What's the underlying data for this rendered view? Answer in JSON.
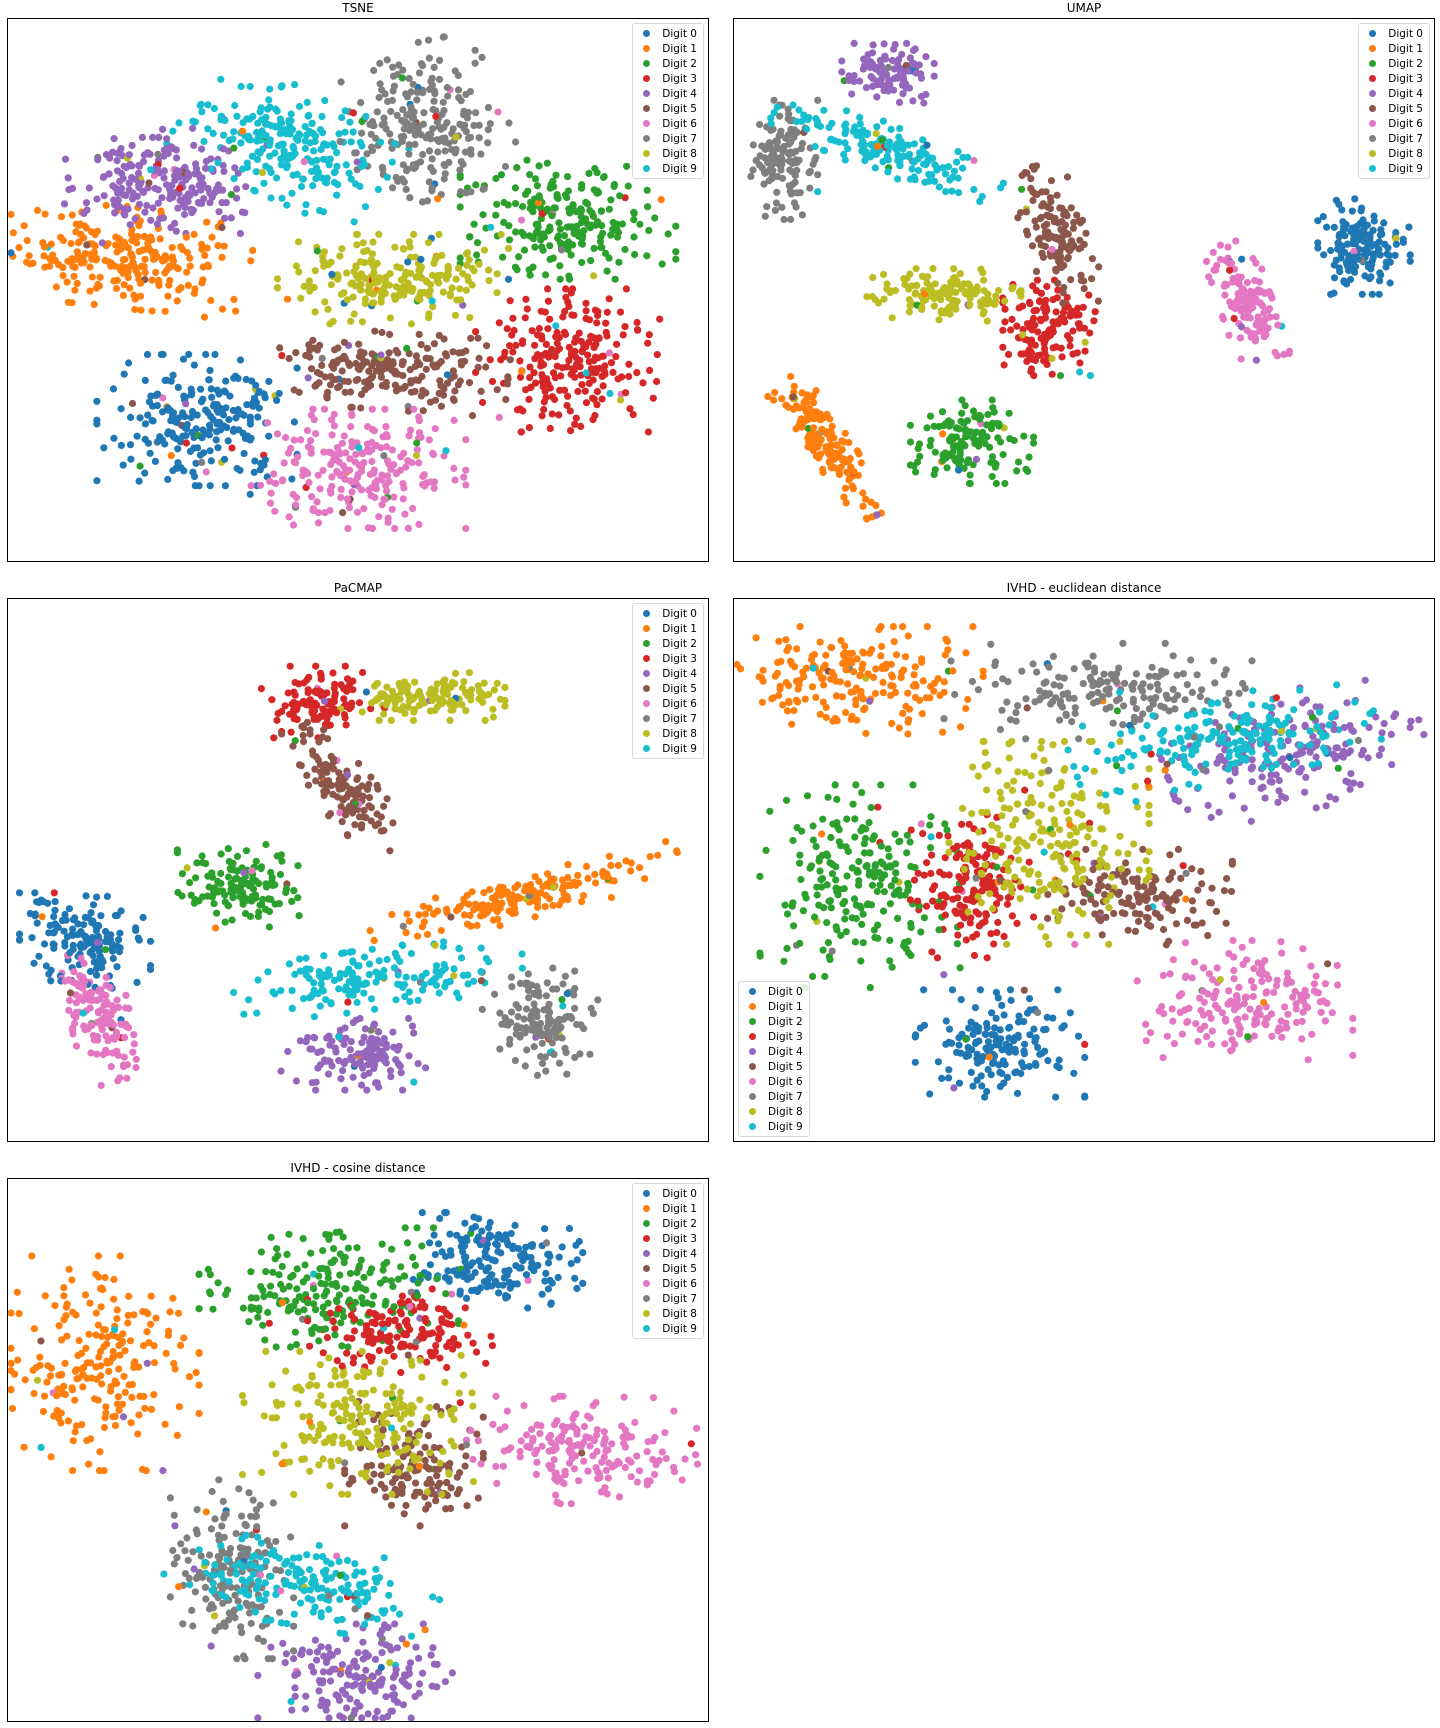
{
  "colors": {
    "Digit 0": "#1f77b4",
    "Digit 1": "#ff7f0e",
    "Digit 2": "#2ca02c",
    "Digit 3": "#d62728",
    "Digit 4": "#9467bd",
    "Digit 5": "#8c564b",
    "Digit 6": "#e377c2",
    "Digit 7": "#7f7f7f",
    "Digit 8": "#bcbd22",
    "Digit 9": "#17becf"
  },
  "chart_data": [
    {
      "type": "scatter",
      "title": "TSNE",
      "xlabel": "",
      "ylabel": "",
      "axes_ticks": "none",
      "legend_position": "upper-right",
      "legend": [
        "Digit 0",
        "Digit 1",
        "Digit 2",
        "Digit 3",
        "Digit 4",
        "Digit 5",
        "Digit 6",
        "Digit 7",
        "Digit 8",
        "Digit 9"
      ],
      "clusters": [
        {
          "label": "Digit 0",
          "cx": 0.27,
          "cy": 0.26,
          "rx": 0.13,
          "ry": 0.11,
          "angle": 0,
          "count": 230
        },
        {
          "label": "Digit 1",
          "cx": 0.17,
          "cy": 0.56,
          "rx": 0.16,
          "ry": 0.085,
          "angle": -8,
          "count": 240
        },
        {
          "label": "Digit 2",
          "cx": 0.8,
          "cy": 0.63,
          "rx": 0.14,
          "ry": 0.1,
          "angle": 0,
          "count": 230
        },
        {
          "label": "Digit 3",
          "cx": 0.8,
          "cy": 0.37,
          "rx": 0.12,
          "ry": 0.12,
          "angle": 0,
          "count": 230
        },
        {
          "label": "Digit 4",
          "cx": 0.22,
          "cy": 0.7,
          "rx": 0.13,
          "ry": 0.095,
          "angle": -10,
          "count": 220
        },
        {
          "label": "Digit 5",
          "cx": 0.55,
          "cy": 0.35,
          "rx": 0.15,
          "ry": 0.065,
          "angle": -5,
          "count": 210
        },
        {
          "label": "Digit 6",
          "cx": 0.5,
          "cy": 0.17,
          "rx": 0.14,
          "ry": 0.1,
          "angle": 0,
          "count": 230
        },
        {
          "label": "Digit 7",
          "cx": 0.59,
          "cy": 0.81,
          "rx": 0.11,
          "ry": 0.13,
          "angle": 15,
          "count": 230
        },
        {
          "label": "Digit 8",
          "cx": 0.55,
          "cy": 0.52,
          "rx": 0.15,
          "ry": 0.075,
          "angle": 0,
          "count": 220
        },
        {
          "label": "Digit 9",
          "cx": 0.4,
          "cy": 0.77,
          "rx": 0.14,
          "ry": 0.09,
          "angle": -30,
          "count": 230
        }
      ]
    },
    {
      "type": "scatter",
      "title": "UMAP",
      "xlabel": "",
      "ylabel": "",
      "axes_ticks": "none",
      "legend_position": "upper-right",
      "legend": [
        "Digit 0",
        "Digit 1",
        "Digit 2",
        "Digit 3",
        "Digit 4",
        "Digit 5",
        "Digit 6",
        "Digit 7",
        "Digit 8",
        "Digit 9"
      ],
      "clusters": [
        {
          "label": "Digit 0",
          "cx": 0.9,
          "cy": 0.58,
          "rx": 0.06,
          "ry": 0.08,
          "angle": 0,
          "count": 150
        },
        {
          "label": "Digit 1",
          "cx": 0.13,
          "cy": 0.22,
          "rx": 0.14,
          "ry": 0.03,
          "angle": -62,
          "count": 160
        },
        {
          "label": "Digit 2",
          "cx": 0.34,
          "cy": 0.22,
          "rx": 0.08,
          "ry": 0.07,
          "angle": 0,
          "count": 140
        },
        {
          "label": "Digit 3",
          "cx": 0.45,
          "cy": 0.43,
          "rx": 0.06,
          "ry": 0.08,
          "angle": 0,
          "count": 140
        },
        {
          "label": "Digit 4",
          "cx": 0.22,
          "cy": 0.9,
          "rx": 0.06,
          "ry": 0.05,
          "angle": 0,
          "count": 110
        },
        {
          "label": "Digit 5",
          "cx": 0.46,
          "cy": 0.6,
          "rx": 0.04,
          "ry": 0.12,
          "angle": 15,
          "count": 130
        },
        {
          "label": "Digit 6",
          "cx": 0.73,
          "cy": 0.48,
          "rx": 0.035,
          "ry": 0.1,
          "angle": 15,
          "count": 140
        },
        {
          "label": "Digit 7",
          "cx": 0.07,
          "cy": 0.74,
          "rx": 0.045,
          "ry": 0.1,
          "angle": 0,
          "count": 130
        },
        {
          "label": "Digit 8",
          "cx": 0.3,
          "cy": 0.49,
          "rx": 0.1,
          "ry": 0.045,
          "angle": 0,
          "count": 140
        },
        {
          "label": "Digit 9",
          "cx": 0.22,
          "cy": 0.76,
          "rx": 0.16,
          "ry": 0.04,
          "angle": -25,
          "count": 160
        }
      ]
    },
    {
      "type": "scatter",
      "title": "PaCMAP",
      "xlabel": "",
      "ylabel": "",
      "axes_ticks": "none",
      "legend_position": "upper-right",
      "legend": [
        "Digit 0",
        "Digit 1",
        "Digit 2",
        "Digit 3",
        "Digit 4",
        "Digit 5",
        "Digit 6",
        "Digit 7",
        "Digit 8",
        "Digit 9"
      ],
      "clusters": [
        {
          "label": "Digit 0",
          "cx": 0.11,
          "cy": 0.37,
          "rx": 0.085,
          "ry": 0.08,
          "angle": 0,
          "count": 150
        },
        {
          "label": "Digit 1",
          "cx": 0.74,
          "cy": 0.45,
          "rx": 0.21,
          "ry": 0.035,
          "angle": 18,
          "count": 180
        },
        {
          "label": "Digit 2",
          "cx": 0.33,
          "cy": 0.47,
          "rx": 0.08,
          "ry": 0.07,
          "angle": 0,
          "count": 140
        },
        {
          "label": "Digit 3",
          "cx": 0.45,
          "cy": 0.81,
          "rx": 0.08,
          "ry": 0.06,
          "angle": 0,
          "count": 120
        },
        {
          "label": "Digit 4",
          "cx": 0.5,
          "cy": 0.16,
          "rx": 0.1,
          "ry": 0.06,
          "angle": 0,
          "count": 130
        },
        {
          "label": "Digit 5",
          "cx": 0.48,
          "cy": 0.65,
          "rx": 0.04,
          "ry": 0.12,
          "angle": 30,
          "count": 130
        },
        {
          "label": "Digit 6",
          "cx": 0.13,
          "cy": 0.23,
          "rx": 0.045,
          "ry": 0.11,
          "angle": 20,
          "count": 140
        },
        {
          "label": "Digit 7",
          "cx": 0.76,
          "cy": 0.22,
          "rx": 0.075,
          "ry": 0.09,
          "angle": 0,
          "count": 140
        },
        {
          "label": "Digit 8",
          "cx": 0.6,
          "cy": 0.82,
          "rx": 0.1,
          "ry": 0.04,
          "angle": 0,
          "count": 130
        },
        {
          "label": "Digit 9",
          "cx": 0.53,
          "cy": 0.3,
          "rx": 0.19,
          "ry": 0.05,
          "angle": 10,
          "count": 170
        }
      ]
    },
    {
      "type": "scatter",
      "title": "IVHD - euclidean distance",
      "xlabel": "",
      "ylabel": "",
      "axes_ticks": "none",
      "legend_position": "lower-left",
      "legend": [
        "Digit 0",
        "Digit 1",
        "Digit 2",
        "Digit 3",
        "Digit 4",
        "Digit 5",
        "Digit 6",
        "Digit 7",
        "Digit 8",
        "Digit 9"
      ],
      "clusters": [
        {
          "label": "Digit 0",
          "cx": 0.38,
          "cy": 0.18,
          "rx": 0.11,
          "ry": 0.09,
          "angle": 0,
          "count": 170
        },
        {
          "label": "Digit 1",
          "cx": 0.18,
          "cy": 0.85,
          "rx": 0.16,
          "ry": 0.09,
          "angle": 0,
          "count": 200
        },
        {
          "label": "Digit 2",
          "cx": 0.18,
          "cy": 0.47,
          "rx": 0.13,
          "ry": 0.17,
          "angle": 0,
          "count": 220
        },
        {
          "label": "Digit 3",
          "cx": 0.34,
          "cy": 0.47,
          "rx": 0.08,
          "ry": 0.12,
          "angle": 0,
          "count": 160
        },
        {
          "label": "Digit 4",
          "cx": 0.8,
          "cy": 0.72,
          "rx": 0.17,
          "ry": 0.1,
          "angle": 15,
          "count": 190
        },
        {
          "label": "Digit 5",
          "cx": 0.58,
          "cy": 0.45,
          "rx": 0.12,
          "ry": 0.08,
          "angle": 0,
          "count": 150
        },
        {
          "label": "Digit 6",
          "cx": 0.73,
          "cy": 0.26,
          "rx": 0.14,
          "ry": 0.1,
          "angle": 0,
          "count": 190
        },
        {
          "label": "Digit 7",
          "cx": 0.52,
          "cy": 0.83,
          "rx": 0.2,
          "ry": 0.08,
          "angle": 0,
          "count": 170
        },
        {
          "label": "Digit 8",
          "cx": 0.45,
          "cy": 0.55,
          "rx": 0.13,
          "ry": 0.17,
          "angle": 0,
          "count": 230
        },
        {
          "label": "Digit 9",
          "cx": 0.7,
          "cy": 0.74,
          "rx": 0.2,
          "ry": 0.07,
          "angle": 15,
          "count": 200
        }
      ]
    },
    {
      "type": "scatter",
      "title": "IVHD - cosine distance",
      "xlabel": "",
      "ylabel": "",
      "axes_ticks": "none",
      "legend_position": "upper-right",
      "legend": [
        "Digit 0",
        "Digit 1",
        "Digit 2",
        "Digit 3",
        "Digit 4",
        "Digit 5",
        "Digit 6",
        "Digit 7",
        "Digit 8",
        "Digit 9"
      ],
      "clusters": [
        {
          "label": "Digit 0",
          "cx": 0.7,
          "cy": 0.85,
          "rx": 0.11,
          "ry": 0.08,
          "angle": 0,
          "count": 170
        },
        {
          "label": "Digit 1",
          "cx": 0.13,
          "cy": 0.66,
          "rx": 0.13,
          "ry": 0.18,
          "angle": 0,
          "count": 220
        },
        {
          "label": "Digit 2",
          "cx": 0.46,
          "cy": 0.8,
          "rx": 0.17,
          "ry": 0.1,
          "angle": 0,
          "count": 210
        },
        {
          "label": "Digit 3",
          "cx": 0.56,
          "cy": 0.72,
          "rx": 0.12,
          "ry": 0.07,
          "angle": 0,
          "count": 150
        },
        {
          "label": "Digit 4",
          "cx": 0.5,
          "cy": 0.08,
          "rx": 0.13,
          "ry": 0.09,
          "angle": 0,
          "count": 170
        },
        {
          "label": "Digit 5",
          "cx": 0.58,
          "cy": 0.47,
          "rx": 0.09,
          "ry": 0.1,
          "angle": 0,
          "count": 140
        },
        {
          "label": "Digit 6",
          "cx": 0.82,
          "cy": 0.5,
          "rx": 0.15,
          "ry": 0.09,
          "angle": 0,
          "count": 180
        },
        {
          "label": "Digit 7",
          "cx": 0.32,
          "cy": 0.28,
          "rx": 0.08,
          "ry": 0.15,
          "angle": 0,
          "count": 180
        },
        {
          "label": "Digit 8",
          "cx": 0.5,
          "cy": 0.55,
          "rx": 0.15,
          "ry": 0.12,
          "angle": 0,
          "count": 220
        },
        {
          "label": "Digit 9",
          "cx": 0.42,
          "cy": 0.25,
          "rx": 0.18,
          "ry": 0.07,
          "angle": -10,
          "count": 200
        }
      ]
    }
  ]
}
